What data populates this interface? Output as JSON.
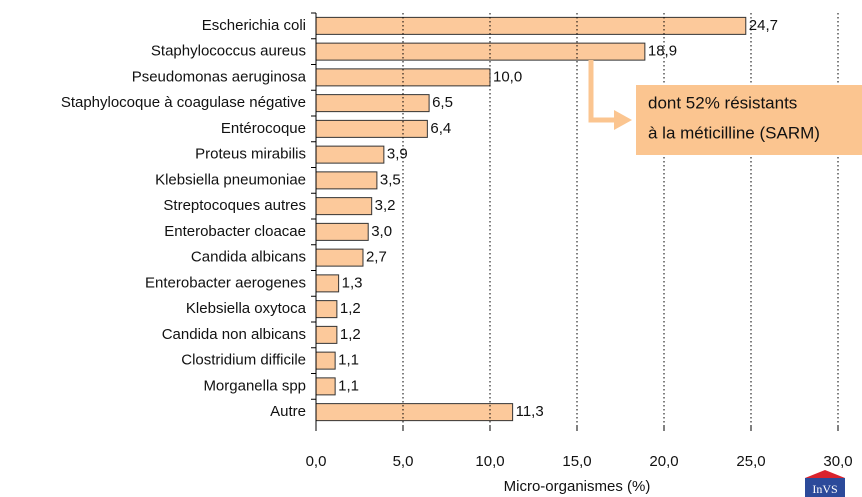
{
  "chart_data": {
    "type": "barh",
    "categories": [
      "Escherichia coli",
      "Staphylococcus aureus",
      "Pseudomonas aeruginosa",
      "Staphylocoque à coagulase négative",
      "Entérocoque",
      "Proteus mirabilis",
      "Klebsiella pneumoniae",
      "Streptocoques autres",
      "Enterobacter cloacae",
      "Candida albicans",
      "Enterobacter aerogenes",
      "Klebsiella oxytoca",
      "Candida non albicans",
      "Clostridium difficile",
      "Morganella spp",
      "Autre"
    ],
    "values": [
      24.7,
      18.9,
      10.0,
      6.5,
      6.4,
      3.9,
      3.5,
      3.2,
      3.0,
      2.7,
      1.3,
      1.2,
      1.2,
      1.1,
      1.1,
      11.3
    ],
    "value_labels": [
      "24,7",
      "18,9",
      "10,0",
      "6,5",
      "6,4",
      "3,9",
      "3,5",
      "3,2",
      "3,0",
      "2,7",
      "1,3",
      "1,2",
      "1,2",
      "1,1",
      "1,1",
      "11,3"
    ],
    "color": "#fcc99b",
    "xlabel": "Micro-organismes (%)",
    "xlim": [
      0,
      30
    ],
    "xticks": [
      {
        "value": 0,
        "label": "0,0"
      },
      {
        "value": 5,
        "label": "5,0"
      },
      {
        "value": 10,
        "label": "10,0"
      },
      {
        "value": 15,
        "label": "15,0"
      },
      {
        "value": 20,
        "label": "20,0"
      },
      {
        "value": 25,
        "label": "25,0"
      },
      {
        "value": 30,
        "label": "30,0"
      }
    ],
    "grid": true,
    "annotation": {
      "lines": [
        "dont 52% résistants",
        "à la méticilline (SARM)"
      ]
    },
    "logo": "InVS"
  }
}
